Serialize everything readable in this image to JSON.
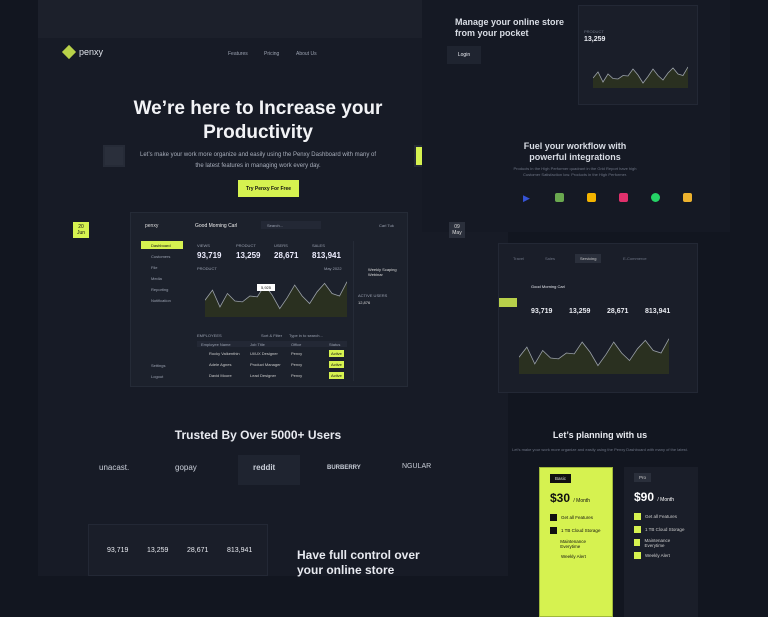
{
  "brand": {
    "name": "penxy",
    "accent": "#d6f250"
  },
  "nav": {
    "items": [
      "Features",
      "Pricing",
      "About Us"
    ],
    "login": "Login"
  },
  "hero": {
    "title": "We’re here to Increase your Productivity",
    "subtitle": "Let’s make your work more organize and easily using the Penxy Dashboard with many of the latest features in managing work every day.",
    "cta": "Try Penxy For Free",
    "date_left": {
      "day": "20",
      "month": "Jun"
    },
    "date_right": {
      "day": "09",
      "month": "May"
    }
  },
  "dashboard": {
    "greeting": "Good Morning Carl",
    "search_placeholder": "Search...",
    "user": "Carl Tuk",
    "sidebar": [
      "Dashboard",
      "Customers",
      "File",
      "Media",
      "Reporting",
      "Notification"
    ],
    "sidebar_bottom": [
      "Settings",
      "Logout"
    ],
    "stats": [
      {
        "label": "VIEWS",
        "value": "93,719"
      },
      {
        "label": "PRODUCT",
        "value": "13,259"
      },
      {
        "label": "USERS",
        "value": "28,671"
      },
      {
        "label": "SALES",
        "value": "813,941"
      }
    ],
    "chart_label": "PRODUCT",
    "period": "May 2022",
    "tooltip": "5,925",
    "trend": [
      50,
      62,
      42,
      58,
      49,
      48,
      55,
      54,
      68,
      56,
      40,
      53,
      68,
      55,
      46,
      60,
      70,
      58,
      55,
      72
    ],
    "employees_label": "EMPLOYEES",
    "sort": "Sort & Filter",
    "employee_search": "Type in to search...",
    "columns": [
      "Employee Name",
      "Job Title",
      "Office",
      "Status"
    ],
    "rows": [
      {
        "name": "Rocky Valkenthin",
        "job": "UI/UX Designer",
        "office": "Penxy",
        "status": "Active"
      },
      {
        "name": "Adele Agnes",
        "job": "Product Manager",
        "office": "Penxy",
        "status": "Active"
      },
      {
        "name": "David Moore",
        "job": "Lead Designer",
        "office": "Penxy",
        "status": "Active"
      }
    ],
    "webinar": "Weekly Scaping Webinar",
    "active_users": "ACTIVE USERS",
    "active_count": "12,876"
  },
  "store": {
    "title": "Manage your online store from your pocket",
    "product_label": "PRODUCT",
    "product_value": "13,259"
  },
  "integrations": {
    "title": "Fuel your workflow with powerful integrations",
    "subtitle": "Products in the High Performer quadrant in the Grid Report have high Customer Satisfaction low. Products in the High Performer."
  },
  "tabs": [
    "Travel",
    "Sales",
    "Servicing",
    "E-Commerce"
  ],
  "trusted": {
    "title": "Trusted By Over 5000+ Users",
    "brands": [
      "unacast.",
      "gopay",
      "reddit",
      "BURBERRY",
      "NGULAR"
    ]
  },
  "control": {
    "title": "Have full control over your online store"
  },
  "pricing": {
    "title": "Let’s planning with us",
    "subtitle": "Let’s make your work more organize and easily using the Penxy Dashboard with many of the latest.",
    "plans": [
      {
        "name": "Basic",
        "price": "$30",
        "per": "/ Month",
        "features": [
          "Get all Features",
          "1 TB Cloud Storage",
          "Maintenance Everytime",
          "Weekly Alert"
        ]
      },
      {
        "name": "Pro",
        "price": "$90",
        "per": "/ Month",
        "features": [
          "Get all Features",
          "1 TB Cloud Storage",
          "Maintenance Everytime",
          "Weekly Alert"
        ]
      }
    ]
  }
}
